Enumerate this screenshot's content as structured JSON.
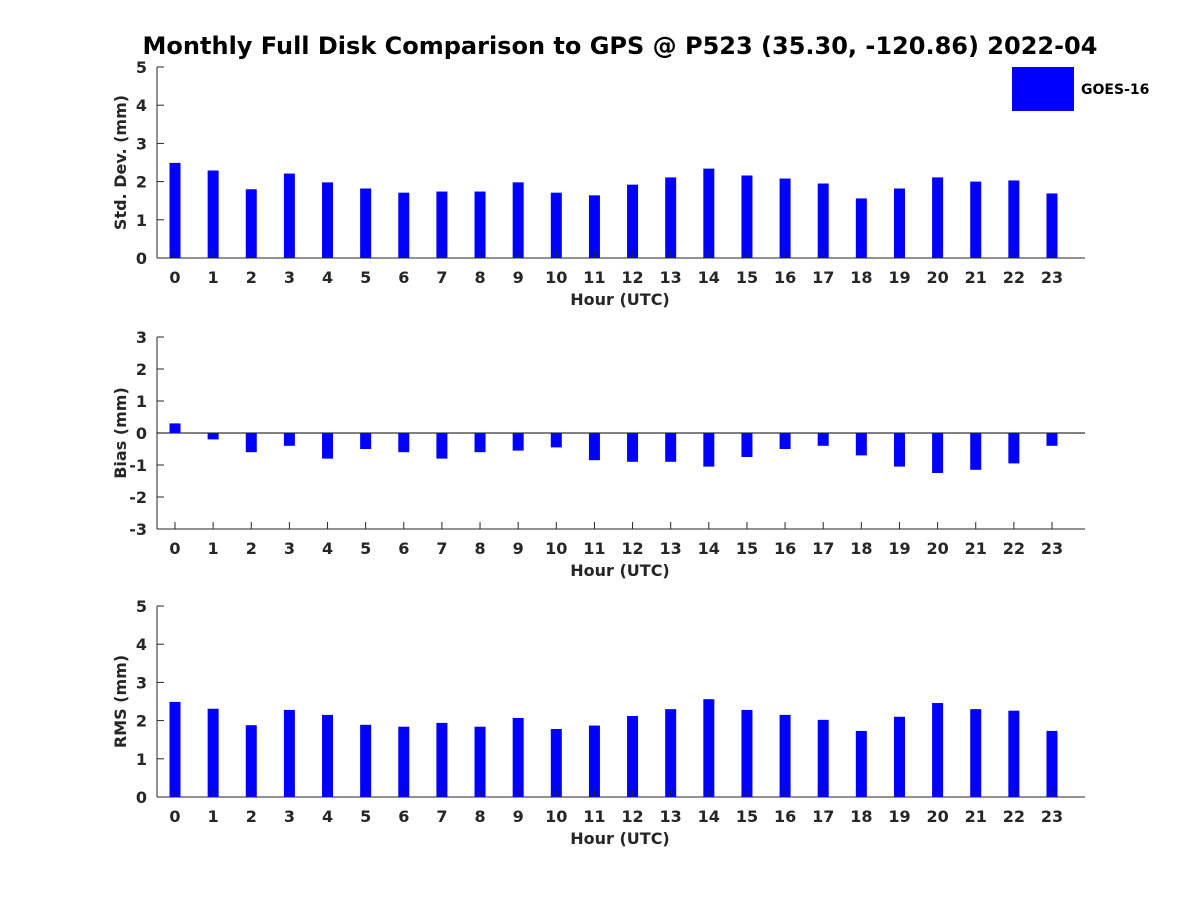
{
  "title": "Monthly Full Disk Comparison to GPS @ P523 (35.30, -120.86) 2022-04",
  "legend": {
    "label": "GOES-16",
    "color": "#0000ff"
  },
  "chart_data": [
    {
      "type": "bar",
      "name": "std-dev",
      "xlabel": "Hour (UTC)",
      "ylabel": "Std. Dev. (mm)",
      "ylim": [
        0,
        5
      ],
      "yticks": [
        0,
        1,
        2,
        3,
        4,
        5
      ],
      "categories": [
        "0",
        "1",
        "2",
        "3",
        "4",
        "5",
        "6",
        "7",
        "8",
        "9",
        "10",
        "11",
        "12",
        "13",
        "14",
        "15",
        "16",
        "17",
        "18",
        "19",
        "20",
        "21",
        "22",
        "23"
      ],
      "series": [
        {
          "name": "GOES-16",
          "values": [
            2.49,
            2.29,
            1.8,
            2.21,
            1.98,
            1.82,
            1.71,
            1.74,
            1.74,
            1.98,
            1.71,
            1.64,
            1.92,
            2.11,
            2.34,
            2.16,
            2.08,
            1.95,
            1.56,
            1.82,
            2.11,
            2.0,
            2.03,
            1.69
          ]
        }
      ],
      "grid": false
    },
    {
      "type": "bar",
      "name": "bias",
      "xlabel": "Hour (UTC)",
      "ylabel": "Bias (mm)",
      "ylim": [
        -3,
        3
      ],
      "yticks": [
        -3,
        -2,
        -1,
        0,
        1,
        2,
        3
      ],
      "categories": [
        "0",
        "1",
        "2",
        "3",
        "4",
        "5",
        "6",
        "7",
        "8",
        "9",
        "10",
        "11",
        "12",
        "13",
        "14",
        "15",
        "16",
        "17",
        "18",
        "19",
        "20",
        "21",
        "22",
        "23"
      ],
      "series": [
        {
          "name": "GOES-16",
          "values": [
            0.3,
            -0.2,
            -0.6,
            -0.4,
            -0.8,
            -0.5,
            -0.6,
            -0.8,
            -0.6,
            -0.55,
            -0.45,
            -0.85,
            -0.9,
            -0.9,
            -1.05,
            -0.75,
            -0.5,
            -0.4,
            -0.7,
            -1.05,
            -1.25,
            -1.15,
            -0.95,
            -0.4
          ]
        }
      ],
      "zero_line": true,
      "grid": false
    },
    {
      "type": "bar",
      "name": "rms",
      "xlabel": "Hour (UTC)",
      "ylabel": "RMS (mm)",
      "ylim": [
        0,
        5
      ],
      "yticks": [
        0,
        1,
        2,
        3,
        4,
        5
      ],
      "categories": [
        "0",
        "1",
        "2",
        "3",
        "4",
        "5",
        "6",
        "7",
        "8",
        "9",
        "10",
        "11",
        "12",
        "13",
        "14",
        "15",
        "16",
        "17",
        "18",
        "19",
        "20",
        "21",
        "22",
        "23"
      ],
      "series": [
        {
          "name": "GOES-16",
          "values": [
            2.49,
            2.31,
            1.88,
            2.28,
            2.15,
            1.89,
            1.84,
            1.94,
            1.84,
            2.07,
            1.78,
            1.87,
            2.12,
            2.3,
            2.56,
            2.28,
            2.15,
            2.02,
            1.73,
            2.1,
            2.46,
            2.3,
            2.26,
            1.73
          ]
        }
      ],
      "grid": false
    }
  ]
}
